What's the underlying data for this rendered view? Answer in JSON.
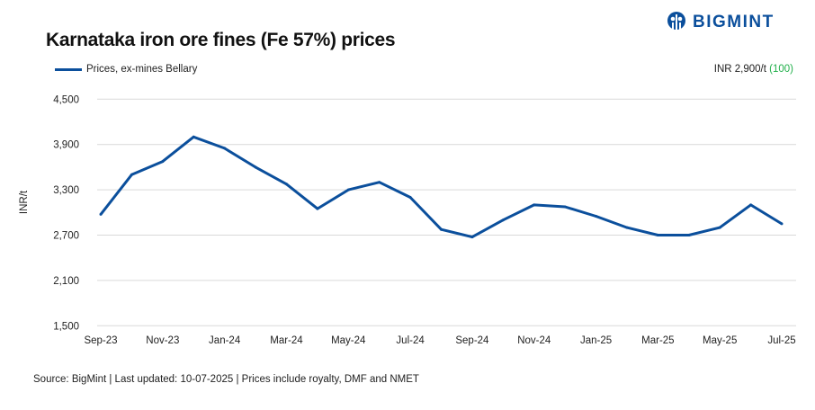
{
  "header": {
    "title": "Karnataka iron ore fines (Fe 57%) prices",
    "brand": "BIGMINT",
    "latest_price": "INR 2,900/t",
    "latest_change": "(100)"
  },
  "footer": {
    "source": "Source: BigMint | Last updated: 10-07-2025 | Prices include royalty, DMF and NMET"
  },
  "colors": {
    "series": "#0b4f9c",
    "grid": "#d9d9d9",
    "change": "#22b04b"
  },
  "chart_data": {
    "type": "line",
    "title": "Karnataka iron ore fines (Fe 57%) prices",
    "xlabel": "",
    "ylabel": "INR/t",
    "ylim": [
      1500,
      4500
    ],
    "yticks": [
      1500,
      2100,
      2700,
      3300,
      3900,
      4500
    ],
    "ytick_labels": [
      "1,500",
      "2,100",
      "2,700",
      "3,300",
      "3,900",
      "4,500"
    ],
    "grid": true,
    "legend_position": "top-left",
    "x": [
      "Sep-23",
      "Oct-23",
      "Nov-23",
      "Dec-23",
      "Jan-24",
      "Feb-24",
      "Mar-24",
      "Apr-24",
      "May-24",
      "Jun-24",
      "Jul-24",
      "Aug-24",
      "Sep-24",
      "Oct-24",
      "Nov-24",
      "Dec-24",
      "Jan-25",
      "Feb-25",
      "Mar-25",
      "Apr-25",
      "May-25",
      "Jun-25",
      "Jul-25"
    ],
    "xtick_labels": [
      "Sep-23",
      "Nov-23",
      "Jan-24",
      "Mar-24",
      "May-24",
      "Jul-24",
      "Sep-24",
      "Nov-24",
      "Jan-25",
      "Mar-25",
      "May-25",
      "Jul-25"
    ],
    "series": [
      {
        "name": "Prices, ex-mines Bellary",
        "values": [
          2975,
          3500,
          3675,
          4000,
          3850,
          3600,
          3375,
          3050,
          3300,
          3400,
          3200,
          2775,
          2675,
          2900,
          3100,
          3075,
          2950,
          2800,
          2700,
          2700,
          2800,
          3100,
          2850
        ]
      }
    ]
  }
}
